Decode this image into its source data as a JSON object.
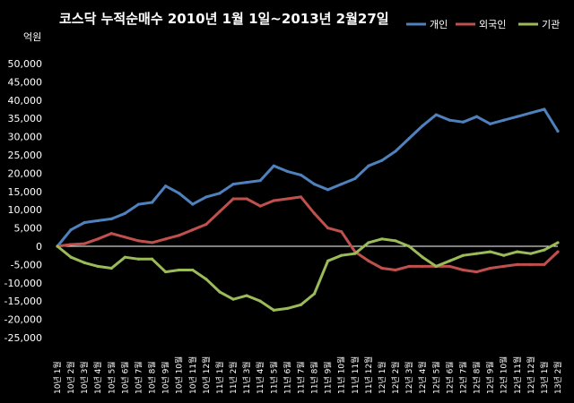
{
  "chart_data": {
    "type": "line",
    "title": "코스닥  누적순매수 2010년 1월 1일~2013년 2월27일",
    "ylabel": "억원",
    "ylim": [
      -25000,
      50000
    ],
    "ytick_step": 5000,
    "yticks": [
      "50,000",
      "45,000",
      "40,000",
      "35,000",
      "30,000",
      "25,000",
      "20,000",
      "15,000",
      "10,000",
      "5,000",
      "0",
      "-5,000",
      "-10,000",
      "-15,000",
      "-20,000",
      "-25,000"
    ],
    "grid": false,
    "legend_position": "top-right",
    "categories": [
      "10년 1월",
      "10년 2월",
      "10년 3월",
      "10년 4월",
      "10년 5월",
      "10년 6월",
      "10년 7월",
      "10년 8월",
      "10년 9월",
      "10년 10월",
      "10년 11월",
      "10년 12월",
      "11년 1월",
      "11년 2월",
      "11년 3월",
      "11년 4월",
      "11년 5월",
      "11년 6월",
      "11년 7월",
      "11년 8월",
      "11년 9월",
      "11년 10월",
      "11년 11월",
      "11년 12월",
      "12년 1월",
      "12년 2월",
      "12년 3월",
      "12년 4월",
      "12년 5월",
      "12년 6월",
      "12년 7월",
      "12년 8월",
      "12년 9월",
      "12년 10월",
      "12년 11월",
      "12년 12월",
      "13년 1월",
      "13년 2월"
    ],
    "series": [
      {
        "name": "개인",
        "color": "#4f81bd",
        "values": [
          0,
          4500,
          6500,
          7000,
          7500,
          9000,
          11500,
          12000,
          16500,
          14500,
          11500,
          13500,
          14500,
          17000,
          17500,
          18000,
          22000,
          20500,
          19500,
          17000,
          15500,
          17000,
          18500,
          22000,
          23500,
          26000,
          29500,
          33000,
          36000,
          34500,
          34000,
          35500,
          33500,
          34500,
          35500,
          36500,
          37500,
          31500
        ]
      },
      {
        "name": "외국인",
        "color": "#c0504d",
        "values": [
          0,
          500,
          700,
          2000,
          3500,
          2500,
          1500,
          1000,
          2000,
          3000,
          4500,
          6000,
          9500,
          13000,
          13000,
          11000,
          12500,
          13000,
          13500,
          9000,
          5000,
          4000,
          -1500,
          -4000,
          -6000,
          -6500,
          -5500,
          -5500,
          -5500,
          -5500,
          -6500,
          -7000,
          -6000,
          -5500,
          -5000,
          -5000,
          -5000,
          -1500
        ]
      },
      {
        "name": "기관",
        "color": "#9bbb59",
        "values": [
          0,
          -3000,
          -4500,
          -5500,
          -6000,
          -3000,
          -3500,
          -3500,
          -7000,
          -6500,
          -6500,
          -9000,
          -12500,
          -14500,
          -13500,
          -15000,
          -17500,
          -17000,
          -16000,
          -13000,
          -4000,
          -2500,
          -2000,
          1000,
          2000,
          1500,
          0,
          -3000,
          -5500,
          -4000,
          -2500,
          -2000,
          -1500,
          -2500,
          -1500,
          -2000,
          -1000,
          1000
        ]
      }
    ]
  }
}
